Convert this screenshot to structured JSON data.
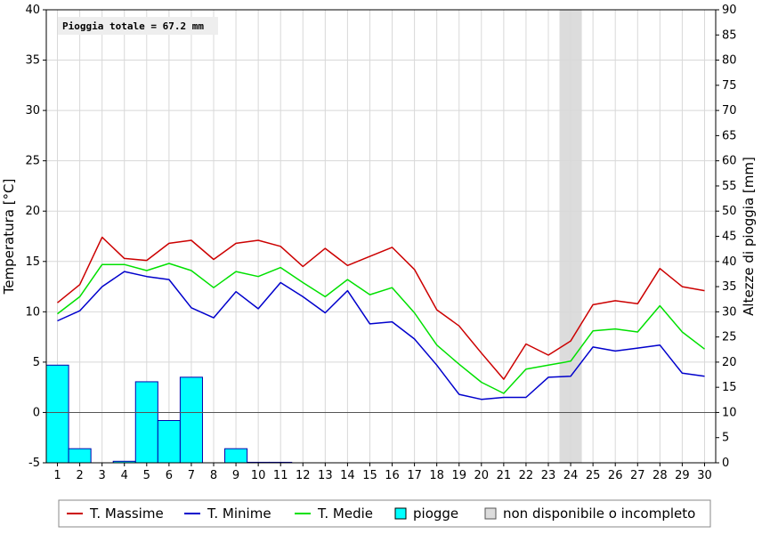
{
  "chart_data": {
    "type": "line",
    "annotation": "Pioggia totale = 67.2 mm",
    "ylabel_left": "Temperatura [°C]",
    "ylabel_right": "Altezze di pioggia [mm]",
    "ylim_left": [
      -5,
      40
    ],
    "ylim_right": [
      0,
      90
    ],
    "yticks_left": [
      -5,
      0,
      5,
      10,
      15,
      20,
      25,
      30,
      35,
      40
    ],
    "yticks_right": [
      0,
      5,
      10,
      15,
      20,
      25,
      30,
      35,
      40,
      45,
      50,
      55,
      60,
      65,
      70,
      75,
      80,
      85,
      90
    ],
    "x": [
      1,
      2,
      3,
      4,
      5,
      6,
      7,
      8,
      9,
      10,
      11,
      12,
      13,
      14,
      15,
      16,
      17,
      18,
      19,
      20,
      21,
      22,
      23,
      24,
      25,
      26,
      27,
      28,
      29,
      30
    ],
    "grid": true,
    "colors": {
      "max": "#cc0000",
      "min": "#0000cc",
      "mean": "#00e000",
      "rain_fill": "#00ffff",
      "rain_stroke": "#0000aa",
      "unavailable": "#dcdcdc"
    },
    "series": [
      {
        "name": "T. Massime",
        "values": [
          10.9,
          12.7,
          17.4,
          15.3,
          15.1,
          16.8,
          17.1,
          15.2,
          16.8,
          17.1,
          16.5,
          14.5,
          16.3,
          14.6,
          15.5,
          16.4,
          14.2,
          10.2,
          8.6,
          5.9,
          3.3,
          6.8,
          5.7,
          7.1,
          10.7,
          11.1,
          10.8,
          14.3,
          12.5,
          12.1
        ]
      },
      {
        "name": "T. Minime",
        "values": [
          9.1,
          10.1,
          12.5,
          14.0,
          13.5,
          13.2,
          10.4,
          9.4,
          12.0,
          10.3,
          12.9,
          11.5,
          9.9,
          12.1,
          8.8,
          9.0,
          7.3,
          4.7,
          1.8,
          1.3,
          1.5,
          1.5,
          3.5,
          3.6,
          6.5,
          6.1,
          6.4,
          6.7,
          3.9,
          3.6
        ]
      },
      {
        "name": "T. Medie",
        "values": [
          9.8,
          11.5,
          14.7,
          14.7,
          14.1,
          14.8,
          14.1,
          12.4,
          14.0,
          13.5,
          14.4,
          12.9,
          11.5,
          13.2,
          11.7,
          12.4,
          9.9,
          6.7,
          4.8,
          3.0,
          1.9,
          4.3,
          4.7,
          5.1,
          8.1,
          8.3,
          8.0,
          10.6,
          8.0,
          6.3
        ]
      }
    ],
    "rain": {
      "name": "piogge",
      "values": [
        19.4,
        2.8,
        0,
        0.3,
        16.1,
        8.4,
        17.0,
        0,
        2.8,
        0.1,
        0.1,
        0,
        0,
        0,
        0,
        0,
        0,
        0,
        0,
        0,
        0,
        0,
        0,
        0,
        0,
        0,
        0,
        0,
        0,
        0
      ]
    },
    "unavailable_days": [
      24
    ],
    "legend": [
      {
        "key": "max",
        "label": "T. Massime",
        "kind": "line"
      },
      {
        "key": "min",
        "label": "T. Minime",
        "kind": "line"
      },
      {
        "key": "mean",
        "label": "T. Medie",
        "kind": "line"
      },
      {
        "key": "rain",
        "label": "piogge",
        "kind": "box-cyan"
      },
      {
        "key": "unavailable",
        "label": "non disponibile o incompleto",
        "kind": "box-gray"
      }
    ],
    "legend_position": "bottom"
  }
}
